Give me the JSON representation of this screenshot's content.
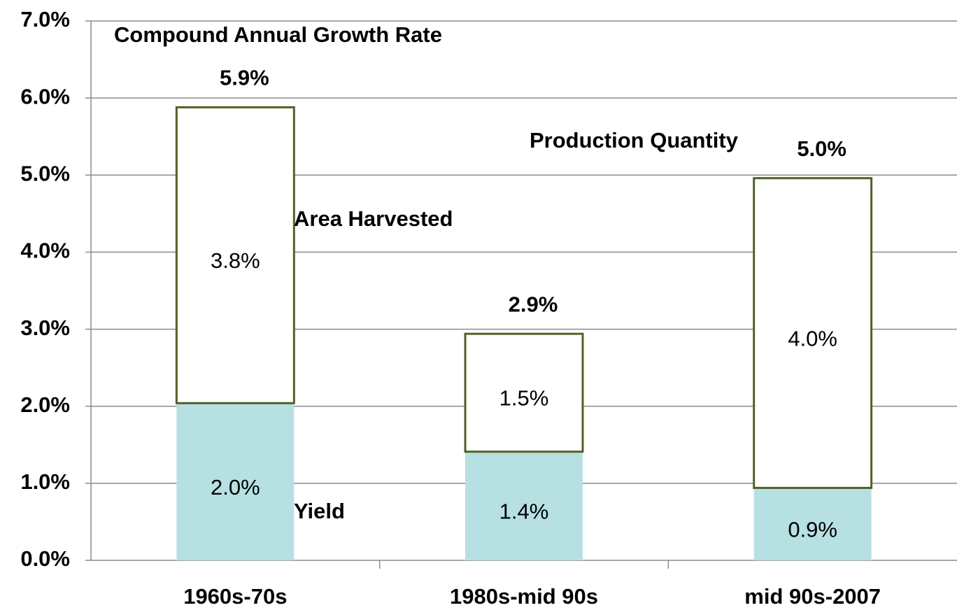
{
  "chart_data": {
    "type": "stacked_bar",
    "title": "Compound Annual Growth Rate",
    "annotation": "Production Quantity",
    "categories": [
      "1960s-70s",
      "1980s-mid 90s",
      "mid 90s-2007"
    ],
    "series": [
      {
        "name": "Yield",
        "color": "#b7e0e3",
        "values": [
          2.04,
          1.41,
          0.94
        ],
        "value_labels": [
          "2.0%",
          "1.4%",
          "0.9%"
        ]
      },
      {
        "name": "Area Harvested",
        "color": "#ffffff",
        "outline": "#4f6228",
        "values": [
          3.84,
          1.53,
          4.02
        ],
        "value_labels": [
          "3.8%",
          "1.5%",
          "4.0%"
        ]
      }
    ],
    "total_labels": [
      "5.9%",
      "2.9%",
      "5.0%"
    ],
    "ylim": [
      0,
      7
    ],
    "yticks": [
      {
        "value": 0,
        "label": "0.0%"
      },
      {
        "value": 1,
        "label": "1.0%"
      },
      {
        "value": 2,
        "label": "2.0%"
      },
      {
        "value": 3,
        "label": "3.0%"
      },
      {
        "value": 4,
        "label": "4.0%"
      },
      {
        "value": 5,
        "label": "5.0%"
      },
      {
        "value": 6,
        "label": "6.0%"
      },
      {
        "value": 7,
        "label": "7.0%"
      }
    ],
    "grid": true
  }
}
